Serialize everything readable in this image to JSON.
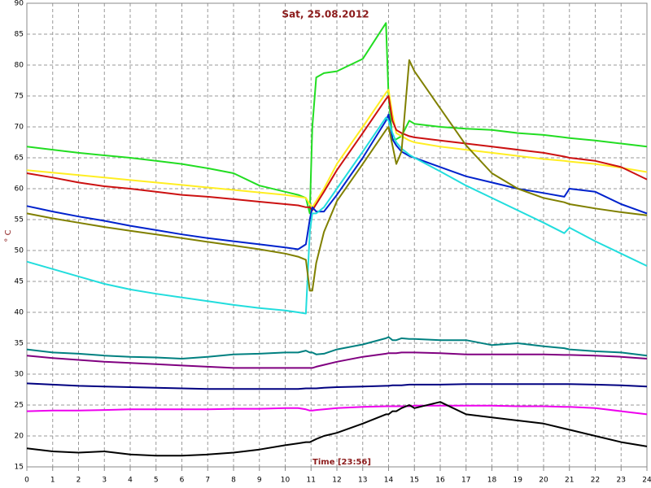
{
  "chart_data": {
    "type": "line",
    "title": "Sat, 25.08.2012",
    "x_label": "Time [23:56]",
    "y_label": "° C",
    "x": [
      0,
      1,
      2,
      3,
      4,
      5,
      6,
      7,
      8,
      9,
      10,
      10.5,
      10.8,
      10.95,
      11.05,
      11.2,
      11.5,
      12,
      13,
      13.9,
      14,
      14.15,
      14.3,
      14.5,
      14.8,
      15,
      16,
      17,
      18,
      19,
      20,
      20.8,
      21,
      22,
      23,
      24
    ],
    "series": [
      {
        "color": "#22dd22",
        "values": [
          66.8,
          66.3,
          65.8,
          65.4,
          65,
          64.5,
          64,
          63.3,
          62.5,
          60.5,
          59.5,
          59,
          58.5,
          56,
          70,
          78,
          78.7,
          79,
          81,
          86.8,
          75,
          68,
          68,
          68.5,
          71,
          70.5,
          70,
          69.7,
          69.5,
          69,
          68.7,
          68.3,
          68.2,
          67.8,
          67.3,
          66.8
        ]
      },
      {
        "color": "#ffee22",
        "values": [
          63,
          62.6,
          62.2,
          61.8,
          61.4,
          61,
          60.6,
          60.2,
          59.8,
          59.4,
          59,
          58.7,
          58.5,
          57.5,
          57,
          58,
          60,
          64,
          70,
          75.5,
          76,
          72,
          69,
          68.5,
          67.8,
          67.5,
          66.8,
          66.3,
          65.8,
          65.3,
          64.8,
          64.5,
          64.4,
          64,
          63.4,
          62.7
        ]
      },
      {
        "color": "#cc1111",
        "values": [
          62.5,
          61.8,
          61,
          60.4,
          60,
          59.5,
          59,
          58.7,
          58.3,
          57.9,
          57.5,
          57.3,
          57,
          57,
          56.5,
          57.5,
          59.5,
          63,
          69,
          74.5,
          75,
          71,
          69.5,
          69,
          68.5,
          68.3,
          67.8,
          67.3,
          66.8,
          66.3,
          65.8,
          65.2,
          65,
          64.5,
          63.5,
          61.5
        ]
      },
      {
        "color": "#0022cc",
        "values": [
          57.2,
          56.3,
          55.5,
          54.8,
          54,
          53.3,
          52.6,
          52,
          51.5,
          51,
          50.5,
          50.2,
          51,
          55,
          57,
          56.3,
          56.3,
          59,
          65,
          71,
          72,
          68,
          67,
          66,
          65.3,
          65,
          63.5,
          62,
          61,
          60,
          59.3,
          58.7,
          60,
          59.5,
          57.5,
          56
        ]
      },
      {
        "color": "#22dddd",
        "values": [
          48.2,
          47,
          45.8,
          44.6,
          43.7,
          43,
          42.4,
          41.8,
          41.2,
          40.7,
          40.3,
          40,
          39.8,
          53,
          56,
          56,
          57,
          60,
          66,
          71.5,
          71,
          69,
          67.5,
          66.5,
          65.5,
          65,
          62.8,
          60.5,
          58.5,
          56.5,
          54.5,
          52.8,
          53.7,
          51.5,
          49.5,
          47.5
        ]
      },
      {
        "color": "#808000",
        "values": [
          56,
          55.2,
          54.5,
          53.8,
          53.2,
          52.6,
          52,
          51.4,
          50.8,
          50.2,
          49.5,
          49,
          48.5,
          43.5,
          43.5,
          48,
          53,
          58,
          64,
          69.5,
          70,
          67,
          64,
          66,
          80.8,
          79,
          73,
          67,
          62.5,
          60,
          58.5,
          57.8,
          57.5,
          56.8,
          56.2,
          55.7
        ]
      },
      {
        "color": "#008080",
        "values": [
          34,
          33.5,
          33.3,
          33,
          32.8,
          32.7,
          32.5,
          32.8,
          33.2,
          33.3,
          33.5,
          33.5,
          33.8,
          33.5,
          33.5,
          33.2,
          33.3,
          34,
          34.8,
          35.8,
          36,
          35.5,
          35.5,
          35.8,
          35.7,
          35.7,
          35.5,
          35.5,
          34.7,
          35,
          34.5,
          34.2,
          34,
          33.7,
          33.5,
          33
        ]
      },
      {
        "color": "#800080",
        "values": [
          33,
          32.6,
          32.3,
          32,
          31.8,
          31.6,
          31.4,
          31.2,
          31,
          31,
          31,
          31,
          31,
          31,
          31,
          31.2,
          31.5,
          32,
          32.8,
          33.3,
          33.4,
          33.4,
          33.4,
          33.5,
          33.5,
          33.5,
          33.4,
          33.2,
          33.2,
          33.2,
          33.2,
          33.1,
          33.1,
          33,
          32.8,
          32.5
        ]
      },
      {
        "color": "#000080",
        "values": [
          28.5,
          28.3,
          28.1,
          28,
          27.9,
          27.8,
          27.7,
          27.6,
          27.6,
          27.6,
          27.6,
          27.6,
          27.7,
          27.7,
          27.7,
          27.7,
          27.8,
          27.9,
          28,
          28.1,
          28.1,
          28.2,
          28.2,
          28.2,
          28.3,
          28.3,
          28.3,
          28.4,
          28.4,
          28.4,
          28.4,
          28.4,
          28.4,
          28.3,
          28.2,
          28
        ]
      },
      {
        "color": "#ee00ee",
        "values": [
          24,
          24.1,
          24.1,
          24.2,
          24.3,
          24.3,
          24.3,
          24.3,
          24.4,
          24.4,
          24.5,
          24.5,
          24.3,
          24.1,
          24.1,
          24.2,
          24.3,
          24.5,
          24.7,
          24.8,
          24.8,
          24.8,
          24.8,
          24.8,
          24.8,
          24.9,
          24.9,
          24.9,
          24.9,
          24.8,
          24.8,
          24.7,
          24.7,
          24.5,
          24,
          23.5
        ]
      },
      {
        "color": "#000000",
        "values": [
          18,
          17.5,
          17.3,
          17.5,
          17,
          16.8,
          16.8,
          17,
          17.3,
          17.8,
          18.5,
          18.8,
          19,
          19,
          19.2,
          19.5,
          20,
          20.5,
          22,
          23.5,
          23.5,
          24,
          24,
          24.5,
          25,
          24.5,
          25.5,
          23.5,
          23,
          22.5,
          22,
          21.2,
          21,
          20,
          19,
          18.3
        ]
      }
    ],
    "xlim": [
      0,
      24
    ],
    "xticks": [
      0,
      1,
      2,
      3,
      4,
      5,
      6,
      7,
      8,
      9,
      10,
      11,
      12,
      13,
      14,
      15,
      16,
      17,
      18,
      19,
      20,
      21,
      22,
      23,
      24
    ],
    "ylim": [
      15,
      90
    ],
    "yticks": [
      15,
      20,
      25,
      30,
      35,
      40,
      45,
      50,
      55,
      60,
      65,
      70,
      75,
      80,
      85,
      90
    ],
    "grid": true
  }
}
